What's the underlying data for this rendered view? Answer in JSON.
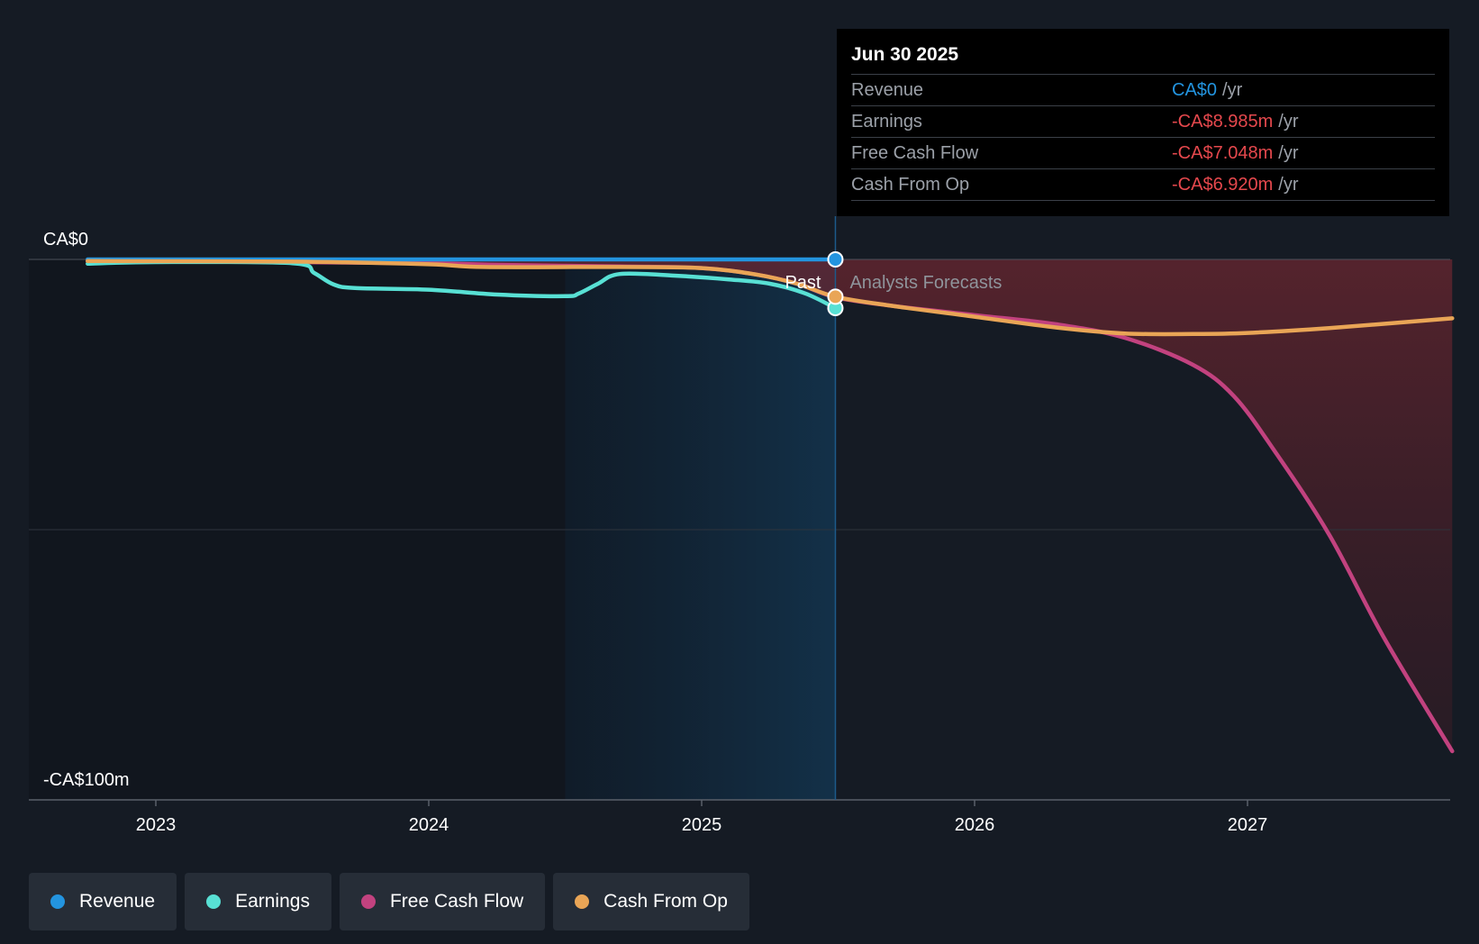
{
  "chart_data": {
    "type": "line",
    "y_axis": {
      "ticks": [
        "CA$0",
        "-CA$100m"
      ],
      "ylim": [
        -100,
        0
      ],
      "unit": "CA$m",
      "grid": true
    },
    "x_axis": {
      "ticks": [
        "2023",
        "2024",
        "2025",
        "2026",
        "2027"
      ],
      "xlim": [
        2022.7,
        2027.75
      ]
    },
    "past_highlight_start": 2024.5,
    "divider_x": 2025.49,
    "region_labels": {
      "past": "Past",
      "forecast": "Analysts Forecasts"
    },
    "series": [
      {
        "name": "Revenue",
        "color": "#2394df",
        "x": [
          2022.75,
          2025.49
        ],
        "values": [
          0,
          0
        ]
      },
      {
        "name": "Earnings",
        "color": "#58e0d4",
        "x": [
          2022.75,
          2023.0,
          2023.5,
          2023.58,
          2023.65,
          2023.73,
          2024.0,
          2024.25,
          2024.5,
          2024.55,
          2024.62,
          2024.7,
          2024.9,
          2025.1,
          2025.25,
          2025.38,
          2025.49
        ],
        "values": [
          -0.8,
          -0.5,
          -0.7,
          -2.5,
          -4.6,
          -5.3,
          -5.6,
          -6.5,
          -6.8,
          -6.3,
          -4.5,
          -2.7,
          -3.0,
          -3.7,
          -4.5,
          -6.3,
          -9.0
        ]
      },
      {
        "name": "Free Cash Flow",
        "color": "#c2427f",
        "x": [
          2022.75,
          2023.5,
          2024.0,
          2024.25,
          2024.7,
          2025.0,
          2025.2,
          2025.35,
          2025.49,
          2025.7,
          2026.0,
          2026.3,
          2026.55,
          2026.8,
          2026.95,
          2027.1,
          2027.3,
          2027.5,
          2027.75
        ],
        "values": [
          -0.3,
          -0.5,
          -0.7,
          -1.0,
          -1.3,
          -1.6,
          -2.8,
          -4.5,
          -7.0,
          -8.6,
          -10.3,
          -12.0,
          -14.5,
          -19.5,
          -25.3,
          -35.5,
          -51.0,
          -70.0,
          -91.0
        ]
      },
      {
        "name": "Cash From Op",
        "color": "#e9a556",
        "x": [
          2022.75,
          2023.5,
          2024.0,
          2024.2,
          2024.7,
          2025.0,
          2025.2,
          2025.35,
          2025.49,
          2025.7,
          2026.0,
          2026.3,
          2026.55,
          2026.8,
          2027.0,
          2027.3,
          2027.75
        ],
        "values": [
          -0.3,
          -0.4,
          -0.9,
          -1.4,
          -1.4,
          -1.6,
          -2.8,
          -4.5,
          -6.9,
          -8.6,
          -10.6,
          -12.6,
          -13.7,
          -13.8,
          -13.6,
          -12.7,
          -10.9
        ]
      }
    ],
    "tooltip": {
      "date": "Jun 30 2025",
      "rows": [
        {
          "label": "Revenue",
          "value": "CA$0",
          "unit": "/yr",
          "color": "#2394df"
        },
        {
          "label": "Earnings",
          "value": "-CA$8.985m",
          "unit": "/yr",
          "color": "#e5484d"
        },
        {
          "label": "Free Cash Flow",
          "value": "-CA$7.048m",
          "unit": "/yr",
          "color": "#e5484d"
        },
        {
          "label": "Cash From Op",
          "value": "-CA$6.920m",
          "unit": "/yr",
          "color": "#e5484d"
        }
      ]
    },
    "legend": [
      {
        "label": "Revenue",
        "color": "#2394df"
      },
      {
        "label": "Earnings",
        "color": "#58e0d4"
      },
      {
        "label": "Free Cash Flow",
        "color": "#c2427f"
      },
      {
        "label": "Cash From Op",
        "color": "#e9a556"
      }
    ]
  }
}
